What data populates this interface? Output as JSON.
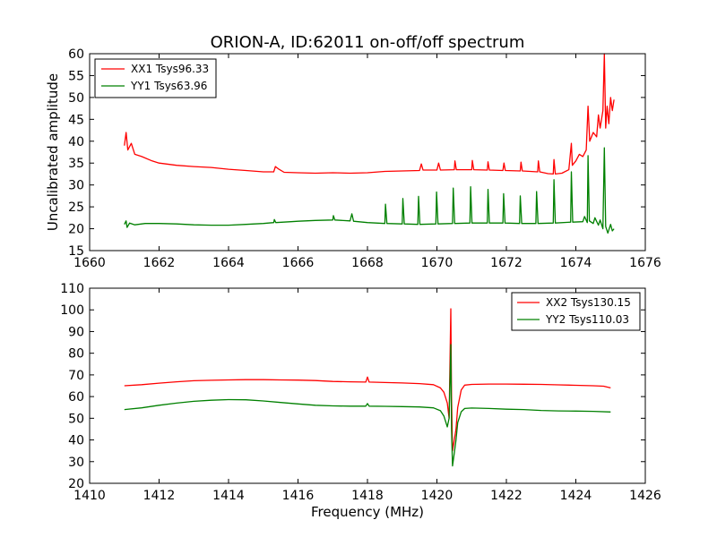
{
  "figure": {
    "title": "ORION-A, ID:62011 on-off/off spectrum"
  },
  "chart_data": [
    {
      "type": "line",
      "title": "ORION-A, ID:62011 on-off/off spectrum",
      "xlabel": "",
      "ylabel": "Uncalibrated amplitude",
      "xlim": [
        1660,
        1676
      ],
      "ylim": [
        15,
        60
      ],
      "xticks": [
        1660,
        1662,
        1664,
        1666,
        1668,
        1670,
        1672,
        1674,
        1676
      ],
      "yticks": [
        15,
        20,
        25,
        30,
        35,
        40,
        45,
        50,
        55,
        60
      ],
      "grid": false,
      "legend_position": "top-left",
      "series": [
        {
          "name": "XX1 Tsys96.33",
          "color": "#ff0000",
          "points": [
            [
              1661.0,
              39.0
            ],
            [
              1661.05,
              42.0
            ],
            [
              1661.1,
              38.0
            ],
            [
              1661.2,
              39.5
            ],
            [
              1661.3,
              37.0
            ],
            [
              1661.5,
              36.5
            ],
            [
              1661.8,
              35.5
            ],
            [
              1662.0,
              35.0
            ],
            [
              1662.5,
              34.5
            ],
            [
              1663.0,
              34.2
            ],
            [
              1663.5,
              34.0
            ],
            [
              1664.0,
              33.6
            ],
            [
              1664.5,
              33.3
            ],
            [
              1665.0,
              33.0
            ],
            [
              1665.3,
              33.0
            ],
            [
              1665.35,
              34.2
            ],
            [
              1665.45,
              33.6
            ],
            [
              1665.6,
              32.9
            ],
            [
              1666.0,
              32.8
            ],
            [
              1666.5,
              32.7
            ],
            [
              1667.0,
              32.8
            ],
            [
              1667.5,
              32.7
            ],
            [
              1668.0,
              32.8
            ],
            [
              1668.5,
              33.1
            ],
            [
              1669.0,
              33.2
            ],
            [
              1669.5,
              33.3
            ],
            [
              1669.55,
              34.8
            ],
            [
              1669.6,
              33.4
            ],
            [
              1670.0,
              33.4
            ],
            [
              1670.05,
              35.0
            ],
            [
              1670.1,
              33.4
            ],
            [
              1670.5,
              33.5
            ],
            [
              1670.52,
              35.5
            ],
            [
              1670.56,
              33.5
            ],
            [
              1671.0,
              33.5
            ],
            [
              1671.02,
              35.6
            ],
            [
              1671.06,
              33.5
            ],
            [
              1671.45,
              33.4
            ],
            [
              1671.47,
              35.3
            ],
            [
              1671.51,
              33.4
            ],
            [
              1671.9,
              33.3
            ],
            [
              1671.93,
              35.0
            ],
            [
              1671.97,
              33.3
            ],
            [
              1672.4,
              33.2
            ],
            [
              1672.42,
              35.2
            ],
            [
              1672.46,
              33.2
            ],
            [
              1672.9,
              33.0
            ],
            [
              1672.92,
              35.5
            ],
            [
              1672.96,
              33.0
            ],
            [
              1673.2,
              32.6
            ],
            [
              1673.35,
              32.5
            ],
            [
              1673.37,
              35.8
            ],
            [
              1673.41,
              32.5
            ],
            [
              1673.6,
              32.7
            ],
            [
              1673.8,
              33.5
            ],
            [
              1673.87,
              39.5
            ],
            [
              1673.9,
              34.5
            ],
            [
              1674.0,
              35.5
            ],
            [
              1674.1,
              37.0
            ],
            [
              1674.2,
              36.5
            ],
            [
              1674.3,
              38.0
            ],
            [
              1674.35,
              48.0
            ],
            [
              1674.4,
              40.0
            ],
            [
              1674.5,
              42.0
            ],
            [
              1674.6,
              41.0
            ],
            [
              1674.65,
              46.0
            ],
            [
              1674.7,
              43.0
            ],
            [
              1674.78,
              47.0
            ],
            [
              1674.82,
              60.0
            ],
            [
              1674.86,
              43.0
            ],
            [
              1674.9,
              48.0
            ],
            [
              1674.95,
              44.0
            ],
            [
              1675.0,
              50.0
            ],
            [
              1675.05,
              47.0
            ],
            [
              1675.1,
              49.5
            ]
          ]
        },
        {
          "name": "YY1 Tsys63.96",
          "color": "#008000",
          "points": [
            [
              1661.0,
              21.0
            ],
            [
              1661.05,
              21.8
            ],
            [
              1661.08,
              20.3
            ],
            [
              1661.15,
              21.3
            ],
            [
              1661.3,
              20.9
            ],
            [
              1661.6,
              21.2
            ],
            [
              1662.0,
              21.2
            ],
            [
              1662.5,
              21.1
            ],
            [
              1663.0,
              20.9
            ],
            [
              1663.5,
              20.8
            ],
            [
              1664.0,
              20.8
            ],
            [
              1664.5,
              21.0
            ],
            [
              1665.0,
              21.2
            ],
            [
              1665.3,
              21.4
            ],
            [
              1665.32,
              22.1
            ],
            [
              1665.36,
              21.4
            ],
            [
              1665.8,
              21.6
            ],
            [
              1666.0,
              21.7
            ],
            [
              1666.5,
              21.9
            ],
            [
              1667.0,
              22.0
            ],
            [
              1667.02,
              23.0
            ],
            [
              1667.06,
              22.0
            ],
            [
              1667.5,
              21.8
            ],
            [
              1667.55,
              23.4
            ],
            [
              1667.6,
              21.7
            ],
            [
              1668.0,
              21.4
            ],
            [
              1668.5,
              21.2
            ],
            [
              1668.52,
              25.6
            ],
            [
              1668.56,
              21.2
            ],
            [
              1669.0,
              21.1
            ],
            [
              1669.02,
              26.9
            ],
            [
              1669.06,
              21.1
            ],
            [
              1669.45,
              21.0
            ],
            [
              1669.47,
              27.4
            ],
            [
              1669.51,
              21.0
            ],
            [
              1669.97,
              21.1
            ],
            [
              1669.99,
              28.4
            ],
            [
              1670.03,
              21.1
            ],
            [
              1670.45,
              21.2
            ],
            [
              1670.47,
              29.3
            ],
            [
              1670.51,
              21.2
            ],
            [
              1670.95,
              21.3
            ],
            [
              1670.97,
              29.6
            ],
            [
              1671.01,
              21.3
            ],
            [
              1671.45,
              21.3
            ],
            [
              1671.47,
              29.0
            ],
            [
              1671.51,
              21.3
            ],
            [
              1671.9,
              21.3
            ],
            [
              1671.92,
              28.0
            ],
            [
              1671.96,
              21.3
            ],
            [
              1672.38,
              21.2
            ],
            [
              1672.4,
              27.5
            ],
            [
              1672.44,
              21.2
            ],
            [
              1672.85,
              21.2
            ],
            [
              1672.87,
              28.5
            ],
            [
              1672.91,
              21.2
            ],
            [
              1673.35,
              21.3
            ],
            [
              1673.37,
              31.2
            ],
            [
              1673.41,
              21.3
            ],
            [
              1673.85,
              21.5
            ],
            [
              1673.87,
              33.0
            ],
            [
              1673.91,
              21.5
            ],
            [
              1674.2,
              21.6
            ],
            [
              1674.25,
              22.8
            ],
            [
              1674.33,
              21.4
            ],
            [
              1674.35,
              36.7
            ],
            [
              1674.39,
              21.8
            ],
            [
              1674.5,
              21.2
            ],
            [
              1674.55,
              22.5
            ],
            [
              1674.65,
              20.8
            ],
            [
              1674.7,
              22.0
            ],
            [
              1674.78,
              20.0
            ],
            [
              1674.82,
              38.5
            ],
            [
              1674.86,
              20.5
            ],
            [
              1674.92,
              19.0
            ],
            [
              1675.0,
              21.0
            ],
            [
              1675.05,
              19.5
            ],
            [
              1675.1,
              20.0
            ]
          ]
        }
      ]
    },
    {
      "type": "line",
      "title": "",
      "xlabel": "Frequency (MHz)",
      "ylabel": "",
      "xlim": [
        1410,
        1426
      ],
      "ylim": [
        20,
        110
      ],
      "xticks": [
        1410,
        1412,
        1414,
        1416,
        1418,
        1420,
        1422,
        1424,
        1426
      ],
      "yticks": [
        20,
        30,
        40,
        50,
        60,
        70,
        80,
        90,
        100,
        110
      ],
      "grid": false,
      "legend_position": "top-right",
      "series": [
        {
          "name": "XX2 Tsys130.15",
          "color": "#ff0000",
          "points": [
            [
              1411.0,
              65.0
            ],
            [
              1411.5,
              65.5
            ],
            [
              1412.0,
              66.2
            ],
            [
              1412.5,
              66.8
            ],
            [
              1413.0,
              67.3
            ],
            [
              1413.5,
              67.5
            ],
            [
              1414.0,
              67.7
            ],
            [
              1414.5,
              67.8
            ],
            [
              1415.0,
              67.8
            ],
            [
              1415.5,
              67.7
            ],
            [
              1416.0,
              67.6
            ],
            [
              1416.5,
              67.4
            ],
            [
              1417.0,
              67.0
            ],
            [
              1417.5,
              66.8
            ],
            [
              1417.95,
              66.7
            ],
            [
              1418.0,
              69.0
            ],
            [
              1418.05,
              66.7
            ],
            [
              1418.5,
              66.5
            ],
            [
              1419.0,
              66.3
            ],
            [
              1419.5,
              66.0
            ],
            [
              1419.9,
              65.5
            ],
            [
              1420.1,
              64.0
            ],
            [
              1420.2,
              62.0
            ],
            [
              1420.3,
              57.0
            ],
            [
              1420.35,
              50.0
            ],
            [
              1420.4,
              100.5
            ],
            [
              1420.42,
              60.0
            ],
            [
              1420.45,
              35.0
            ],
            [
              1420.5,
              40.0
            ],
            [
              1420.55,
              45.0
            ],
            [
              1420.6,
              55.0
            ],
            [
              1420.7,
              63.0
            ],
            [
              1420.8,
              65.3
            ],
            [
              1421.0,
              65.6
            ],
            [
              1421.5,
              65.8
            ],
            [
              1422.0,
              65.8
            ],
            [
              1422.5,
              65.7
            ],
            [
              1423.0,
              65.6
            ],
            [
              1423.5,
              65.4
            ],
            [
              1424.0,
              65.2
            ],
            [
              1424.5,
              65.0
            ],
            [
              1424.8,
              64.8
            ],
            [
              1425.0,
              64.0
            ]
          ]
        },
        {
          "name": "YY2 Tsys110.03",
          "color": "#008000",
          "points": [
            [
              1411.0,
              54.0
            ],
            [
              1411.5,
              54.8
            ],
            [
              1412.0,
              56.0
            ],
            [
              1412.5,
              57.0
            ],
            [
              1413.0,
              57.8
            ],
            [
              1413.5,
              58.3
            ],
            [
              1414.0,
              58.6
            ],
            [
              1414.5,
              58.5
            ],
            [
              1415.0,
              58.0
            ],
            [
              1415.5,
              57.3
            ],
            [
              1416.0,
              56.6
            ],
            [
              1416.5,
              56.0
            ],
            [
              1417.0,
              55.7
            ],
            [
              1417.5,
              55.6
            ],
            [
              1417.95,
              55.6
            ],
            [
              1418.0,
              56.8
            ],
            [
              1418.05,
              55.6
            ],
            [
              1418.5,
              55.5
            ],
            [
              1419.0,
              55.4
            ],
            [
              1419.5,
              55.2
            ],
            [
              1419.9,
              54.8
            ],
            [
              1420.1,
              53.5
            ],
            [
              1420.2,
              51.0
            ],
            [
              1420.3,
              46.0
            ],
            [
              1420.35,
              50.0
            ],
            [
              1420.4,
              84.0
            ],
            [
              1420.42,
              45.0
            ],
            [
              1420.45,
              28.0
            ],
            [
              1420.5,
              34.0
            ],
            [
              1420.55,
              40.0
            ],
            [
              1420.6,
              48.0
            ],
            [
              1420.7,
              53.0
            ],
            [
              1420.8,
              54.5
            ],
            [
              1421.0,
              54.7
            ],
            [
              1421.5,
              54.5
            ],
            [
              1422.0,
              54.2
            ],
            [
              1422.5,
              54.0
            ],
            [
              1423.0,
              53.6
            ],
            [
              1423.5,
              53.4
            ],
            [
              1424.0,
              53.3
            ],
            [
              1424.5,
              53.2
            ],
            [
              1425.0,
              52.9
            ]
          ]
        }
      ]
    }
  ]
}
